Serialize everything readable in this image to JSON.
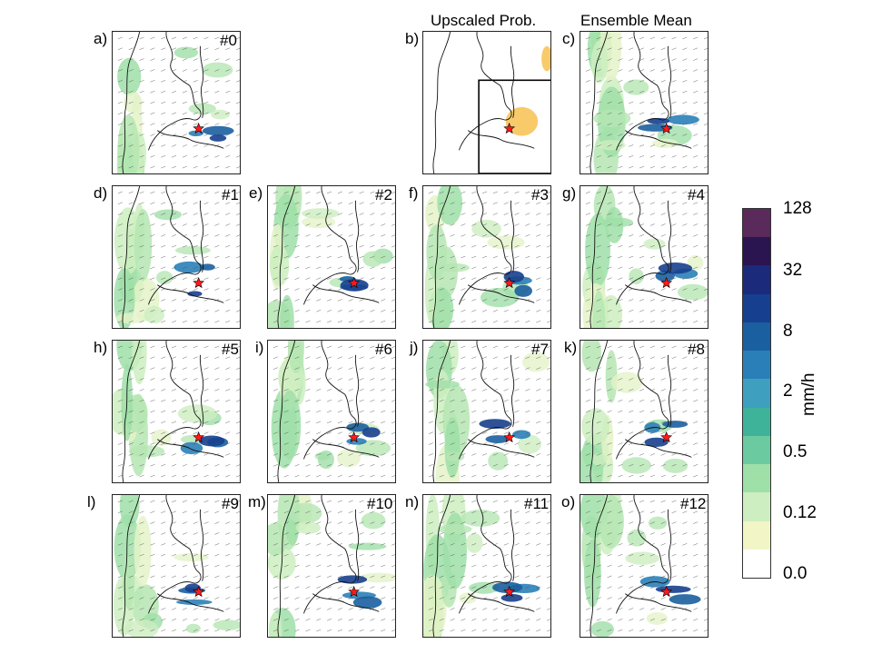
{
  "titles": {
    "upscaled_prob": "Upscaled Prob.",
    "ensemble_mean": "Ensemble Mean"
  },
  "panels": [
    {
      "label": "a)",
      "member": "#0"
    },
    {
      "label": "b)",
      "member": ""
    },
    {
      "label": "c)",
      "member": ""
    },
    {
      "label": "d)",
      "member": "#1"
    },
    {
      "label": "e)",
      "member": "#2"
    },
    {
      "label": "f)",
      "member": "#3"
    },
    {
      "label": "g)",
      "member": "#4"
    },
    {
      "label": "h)",
      "member": "#5"
    },
    {
      "label": "i)",
      "member": "#6"
    },
    {
      "label": "j)",
      "member": "#7"
    },
    {
      "label": "k)",
      "member": "#8"
    },
    {
      "label": "l)",
      "member": "#9"
    },
    {
      "label": "m)",
      "member": "#10"
    },
    {
      "label": "n)",
      "member": "#11"
    },
    {
      "label": "o)",
      "member": "#12"
    }
  ],
  "colorbar": {
    "unit": "mm/h",
    "tick_labels": [
      "128",
      "32",
      "8",
      "2",
      "0.5",
      "0.12",
      "0.0"
    ],
    "colors_bottom_to_top": [
      "#ffffff",
      "#f2f5c6",
      "#cdeec0",
      "#9fdfa8",
      "#6ccaa0",
      "#3fb39a",
      "#3f9fbe",
      "#2a7fb8",
      "#1a5fa0",
      "#163f8f",
      "#1b2a7a",
      "#2a1550",
      "#5a2a5a"
    ]
  },
  "legend_marker": {
    "icon": "red-star-icon",
    "color": "#ff1a1a"
  }
}
